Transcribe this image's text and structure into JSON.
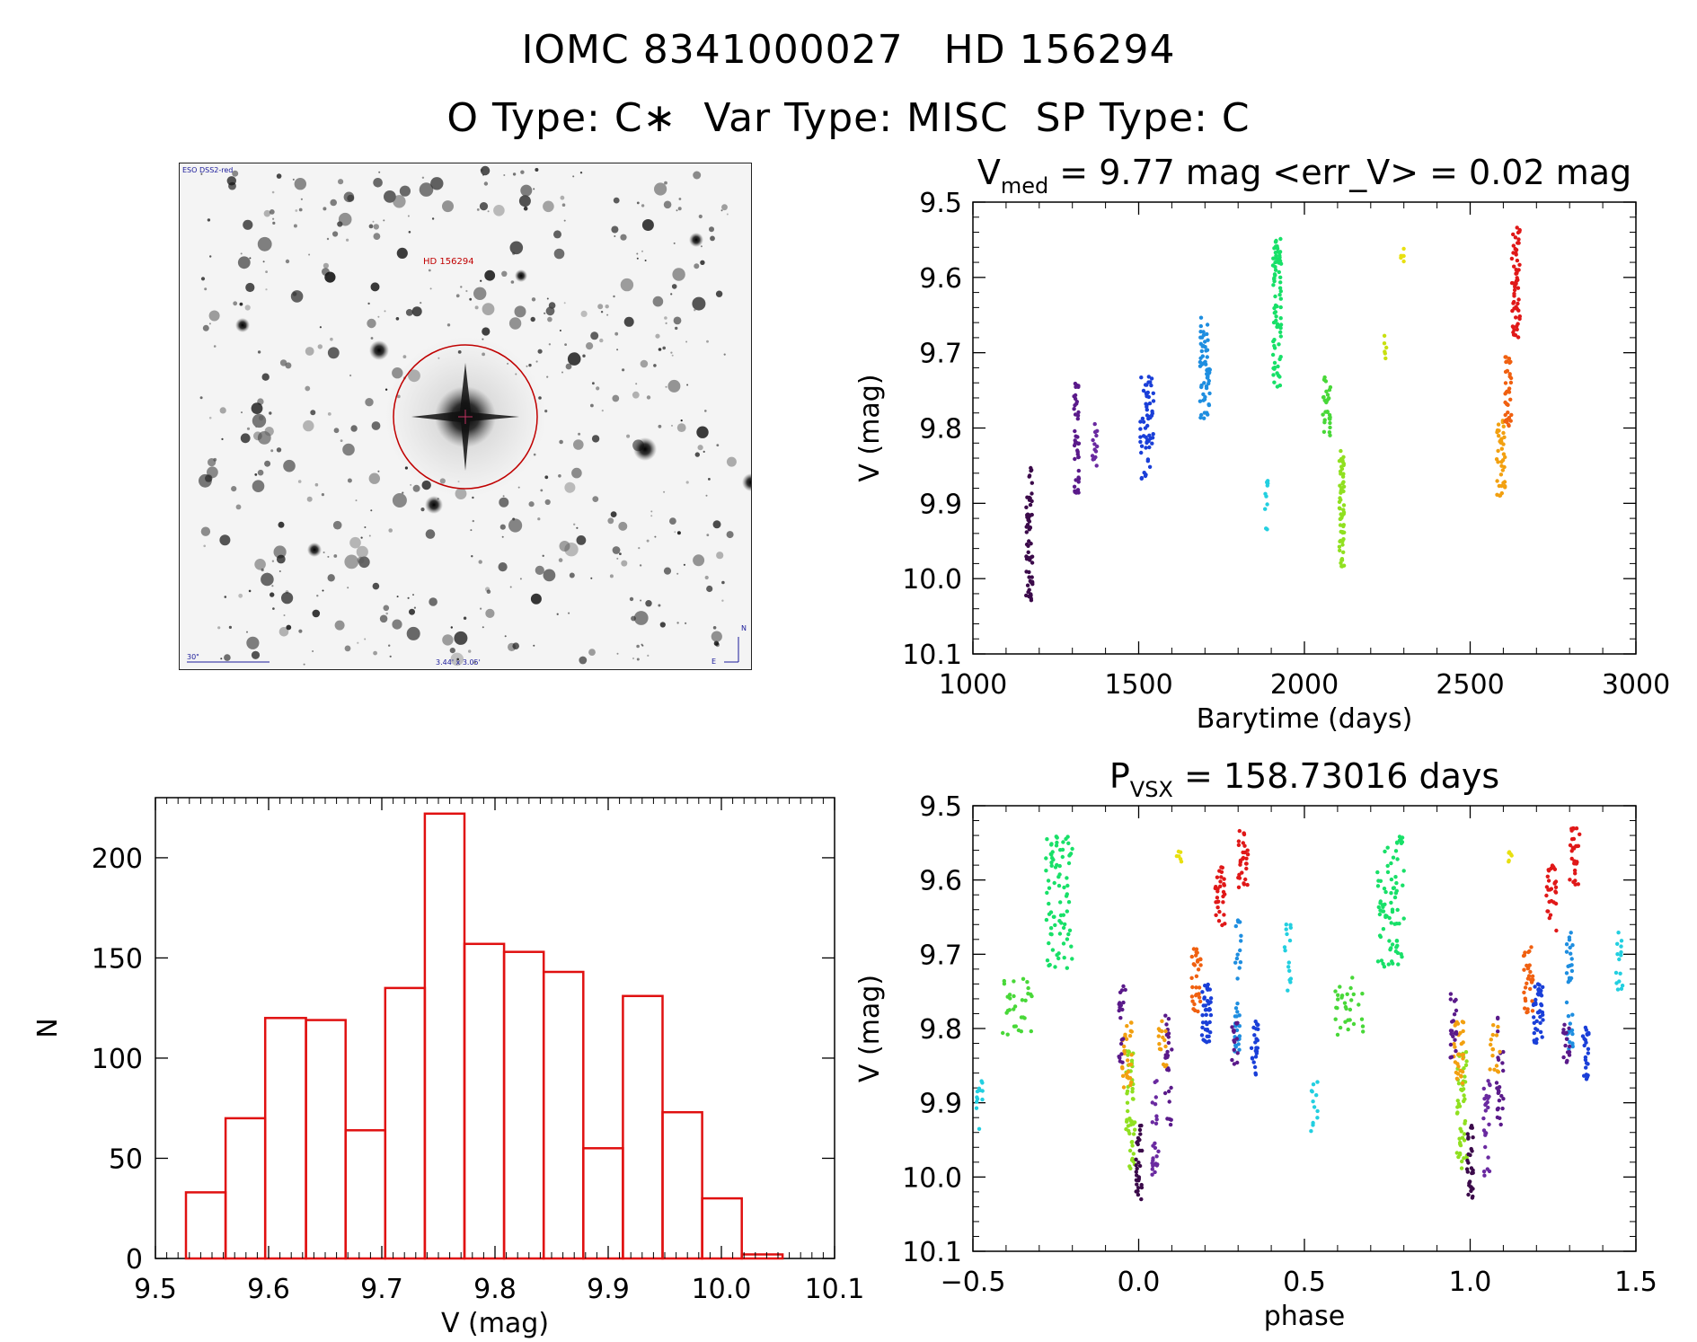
{
  "title": {
    "line1": "IOMC 8341000027   HD 156294",
    "line2": "O Type: C∗  Var Type: MISC  SP Type: C"
  },
  "image_panel": {
    "survey_label": "ESO DSS2-red",
    "target_label": "HD 156294",
    "scale_label": "30\"",
    "size_label": "3.44' x 3.05'",
    "north": "N",
    "east": "E",
    "circle_color": "#c00000",
    "text_color": "#1a1a9a"
  },
  "chart_data": [
    {
      "type": "scatter",
      "id": "lightcurve",
      "title_main": "V",
      "title_sub": "med",
      "title_rest": " = 9.77 mag <err_V> = 0.02 mag",
      "xlabel": "Barytime (days)",
      "ylabel": "V (mag)",
      "xlim": [
        1000,
        3000
      ],
      "ylim": [
        10.1,
        9.5
      ],
      "xticks": [
        "1000",
        "1500",
        "2000",
        "2500",
        "3000"
      ],
      "yticks": [
        "9.5",
        "9.6",
        "9.7",
        "9.8",
        "9.9",
        "10.0",
        "10.1"
      ],
      "clusters": [
        {
          "color": "#3b0a4a",
          "x": [
            1160,
            1180
          ],
          "y": [
            9.85,
            10.03
          ],
          "n": 60
        },
        {
          "color": "#5a1a8a",
          "x": [
            1305,
            1320
          ],
          "y": [
            9.74,
            9.89
          ],
          "n": 45
        },
        {
          "color": "#6a2aa0",
          "x": [
            1360,
            1375
          ],
          "y": [
            9.79,
            9.85
          ],
          "n": 15
        },
        {
          "color": "#1a3fd8",
          "x": [
            1505,
            1545
          ],
          "y": [
            9.73,
            9.87
          ],
          "n": 60
        },
        {
          "color": "#1e8ee0",
          "x": [
            1685,
            1715
          ],
          "y": [
            9.65,
            9.79
          ],
          "n": 60
        },
        {
          "color": "#22cfe0",
          "x": [
            1880,
            1890
          ],
          "y": [
            9.87,
            9.94
          ],
          "n": 12
        },
        {
          "color": "#18e068",
          "x": [
            1905,
            1930
          ],
          "y": [
            9.54,
            9.75
          ],
          "n": 80
        },
        {
          "color": "#48d838",
          "x": [
            2055,
            2080
          ],
          "y": [
            9.73,
            9.81
          ],
          "n": 30
        },
        {
          "color": "#90e020",
          "x": [
            2105,
            2120
          ],
          "y": [
            9.83,
            9.99
          ],
          "n": 60
        },
        {
          "color": "#c8e010",
          "x": [
            2240,
            2250
          ],
          "y": [
            9.67,
            9.71
          ],
          "n": 6
        },
        {
          "color": "#e8e010",
          "x": [
            2290,
            2300
          ],
          "y": [
            9.56,
            9.58
          ],
          "n": 6
        },
        {
          "color": "#f2a010",
          "x": [
            2580,
            2605
          ],
          "y": [
            9.79,
            9.89
          ],
          "n": 40
        },
        {
          "color": "#f06010",
          "x": [
            2605,
            2625
          ],
          "y": [
            9.7,
            9.8
          ],
          "n": 35
        },
        {
          "color": "#e01818",
          "x": [
            2625,
            2650
          ],
          "y": [
            9.53,
            9.68
          ],
          "n": 60
        }
      ]
    },
    {
      "type": "bar",
      "id": "histogram",
      "xlabel": "V (mag)",
      "ylabel": "N",
      "xlim": [
        9.5,
        10.1
      ],
      "ylim": [
        0,
        230
      ],
      "xticks": [
        "9.5",
        "9.6",
        "9.7",
        "9.8",
        "9.9",
        "10.0",
        "10.1"
      ],
      "yticks": [
        "0",
        "50",
        "100",
        "150",
        "200"
      ],
      "bin_edges": [
        9.527,
        9.562,
        9.597,
        9.633,
        9.668,
        9.703,
        9.738,
        9.773,
        9.808,
        9.843,
        9.878,
        9.913,
        9.948,
        9.983,
        10.018,
        10.054
      ],
      "values": [
        33,
        70,
        120,
        119,
        64,
        135,
        222,
        157,
        153,
        143,
        55,
        131,
        73,
        30,
        2
      ],
      "color": "#e01010"
    },
    {
      "type": "scatter",
      "id": "phased",
      "title_main": "P",
      "title_sub": "VSX",
      "title_rest": " = 158.73016 days",
      "xlabel": "phase",
      "ylabel": "V (mag)",
      "xlim": [
        -0.5,
        1.5
      ],
      "ylim": [
        10.1,
        9.5
      ],
      "xticks": [
        "−0.5",
        "0.0",
        "0.5",
        "1.0",
        "1.5"
      ],
      "yticks": [
        "9.5",
        "9.6",
        "9.7",
        "9.8",
        "9.9",
        "10.0",
        "10.1"
      ],
      "clusters": [
        {
          "color": "#22cfe0",
          "x": [
            -0.49,
            -0.47
          ],
          "y": [
            9.87,
            9.94
          ],
          "n": 12
        },
        {
          "color": "#48d838",
          "x": [
            -0.41,
            -0.32
          ],
          "y": [
            9.73,
            9.81
          ],
          "n": 30
        },
        {
          "color": "#18e068",
          "x": [
            -0.28,
            -0.2
          ],
          "y": [
            9.54,
            9.72
          ],
          "n": 80
        },
        {
          "color": "#90e020",
          "x": [
            -0.04,
            -0.01
          ],
          "y": [
            9.83,
            9.99
          ],
          "n": 50
        },
        {
          "color": "#f2a010",
          "x": [
            -0.05,
            -0.02
          ],
          "y": [
            9.79,
            9.88
          ],
          "n": 30
        },
        {
          "color": "#5a1a8a",
          "x": [
            -0.06,
            -0.04
          ],
          "y": [
            9.74,
            9.85
          ],
          "n": 20
        },
        {
          "color": "#3b0a4a",
          "x": [
            -0.01,
            0.01
          ],
          "y": [
            9.93,
            10.03
          ],
          "n": 30
        },
        {
          "color": "#6a2aa0",
          "x": [
            0.04,
            0.06
          ],
          "y": [
            9.87,
            10.0
          ],
          "n": 25
        },
        {
          "color": "#5a1a8a",
          "x": [
            0.08,
            0.1
          ],
          "y": [
            9.78,
            9.93
          ],
          "n": 25
        },
        {
          "color": "#f2a010",
          "x": [
            0.06,
            0.09
          ],
          "y": [
            9.79,
            9.86
          ],
          "n": 15
        },
        {
          "color": "#e8e010",
          "x": [
            0.11,
            0.13
          ],
          "y": [
            9.56,
            9.58
          ],
          "n": 6
        },
        {
          "color": "#f06010",
          "x": [
            0.16,
            0.19
          ],
          "y": [
            9.69,
            9.78
          ],
          "n": 30
        },
        {
          "color": "#e01818",
          "x": [
            0.23,
            0.26
          ],
          "y": [
            9.58,
            9.67
          ],
          "n": 30
        },
        {
          "color": "#1a3fd8",
          "x": [
            0.19,
            0.22
          ],
          "y": [
            9.74,
            9.82
          ],
          "n": 40
        },
        {
          "color": "#e01818",
          "x": [
            0.3,
            0.33
          ],
          "y": [
            9.53,
            9.61
          ],
          "n": 30
        },
        {
          "color": "#1e8ee0",
          "x": [
            0.29,
            0.31
          ],
          "y": [
            9.65,
            9.84
          ],
          "n": 35
        },
        {
          "color": "#5a1a8a",
          "x": [
            0.28,
            0.3
          ],
          "y": [
            9.79,
            9.85
          ],
          "n": 15
        },
        {
          "color": "#1a3fd8",
          "x": [
            0.34,
            0.36
          ],
          "y": [
            9.79,
            9.87
          ],
          "n": 25
        },
        {
          "color": "#22cfe0",
          "x": [
            0.44,
            0.46
          ],
          "y": [
            9.65,
            9.75
          ],
          "n": 15
        },
        {
          "color": "#22cfe0",
          "x": [
            0.52,
            0.54
          ],
          "y": [
            9.87,
            9.94
          ],
          "n": 12
        },
        {
          "color": "#48d838",
          "x": [
            0.59,
            0.68
          ],
          "y": [
            9.73,
            9.81
          ],
          "n": 30
        },
        {
          "color": "#18e068",
          "x": [
            0.72,
            0.8
          ],
          "y": [
            9.54,
            9.72
          ],
          "n": 80
        },
        {
          "color": "#90e020",
          "x": [
            0.96,
            0.99
          ],
          "y": [
            9.83,
            9.99
          ],
          "n": 50
        },
        {
          "color": "#f2a010",
          "x": [
            0.95,
            0.98
          ],
          "y": [
            9.79,
            9.88
          ],
          "n": 30
        },
        {
          "color": "#5a1a8a",
          "x": [
            0.94,
            0.96
          ],
          "y": [
            9.74,
            9.85
          ],
          "n": 20
        },
        {
          "color": "#3b0a4a",
          "x": [
            0.99,
            1.01
          ],
          "y": [
            9.93,
            10.03
          ],
          "n": 30
        },
        {
          "color": "#6a2aa0",
          "x": [
            1.04,
            1.06
          ],
          "y": [
            9.87,
            10.0
          ],
          "n": 25
        },
        {
          "color": "#5a1a8a",
          "x": [
            1.08,
            1.1
          ],
          "y": [
            9.78,
            9.93
          ],
          "n": 25
        },
        {
          "color": "#f2a010",
          "x": [
            1.06,
            1.09
          ],
          "y": [
            9.79,
            9.86
          ],
          "n": 15
        },
        {
          "color": "#e8e010",
          "x": [
            1.11,
            1.13
          ],
          "y": [
            9.56,
            9.58
          ],
          "n": 6
        },
        {
          "color": "#f06010",
          "x": [
            1.16,
            1.19
          ],
          "y": [
            9.69,
            9.78
          ],
          "n": 30
        },
        {
          "color": "#e01818",
          "x": [
            1.23,
            1.26
          ],
          "y": [
            9.58,
            9.67
          ],
          "n": 30
        },
        {
          "color": "#1a3fd8",
          "x": [
            1.19,
            1.22
          ],
          "y": [
            9.74,
            9.82
          ],
          "n": 40
        },
        {
          "color": "#e01818",
          "x": [
            1.3,
            1.33
          ],
          "y": [
            9.53,
            9.61
          ],
          "n": 30
        },
        {
          "color": "#1e8ee0",
          "x": [
            1.29,
            1.31
          ],
          "y": [
            9.65,
            9.84
          ],
          "n": 35
        },
        {
          "color": "#5a1a8a",
          "x": [
            1.28,
            1.3
          ],
          "y": [
            9.79,
            9.85
          ],
          "n": 15
        },
        {
          "color": "#1a3fd8",
          "x": [
            1.34,
            1.36
          ],
          "y": [
            9.79,
            9.87
          ],
          "n": 25
        },
        {
          "color": "#22cfe0",
          "x": [
            1.44,
            1.46
          ],
          "y": [
            9.65,
            9.75
          ],
          "n": 15
        }
      ]
    }
  ]
}
